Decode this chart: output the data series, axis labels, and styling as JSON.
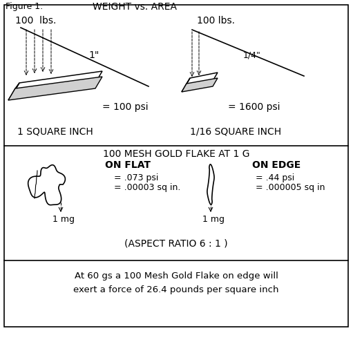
{
  "figure_label": "Figure 1.",
  "figure_title": "WEIGHT vs. AREA",
  "top_left_weight": "100  lbs.",
  "top_left_dim": "1\"",
  "top_left_psi": "= 100 psi",
  "top_left_area": "1 SQUARE INCH",
  "top_right_weight": "100 lbs.",
  "top_right_dim": "1/4\"",
  "top_right_psi": "= 1600 psi",
  "top_right_area": "1/16 SQUARE INCH",
  "mid_title": "100 MESH GOLD FLAKE AT 1 G",
  "mid_left_label": "ON FLAT",
  "mid_left_psi": "= .073 psi",
  "mid_left_area": "= .00003 sq in.",
  "mid_left_mg": "1 mg",
  "mid_right_label": "ON EDGE",
  "mid_right_psi": "= .44 psi",
  "mid_right_area": "= .000005 sq in",
  "mid_right_mg": "1 mg",
  "mid_aspect": "(ASPECT RATIO 6 : 1 )",
  "bot_line1": "At 60 gs a 100 Mesh Gold Flake on edge will",
  "bot_line2": "exert a force of 26.4 pounds per square inch",
  "bg": "#ffffff",
  "fg": "#000000"
}
